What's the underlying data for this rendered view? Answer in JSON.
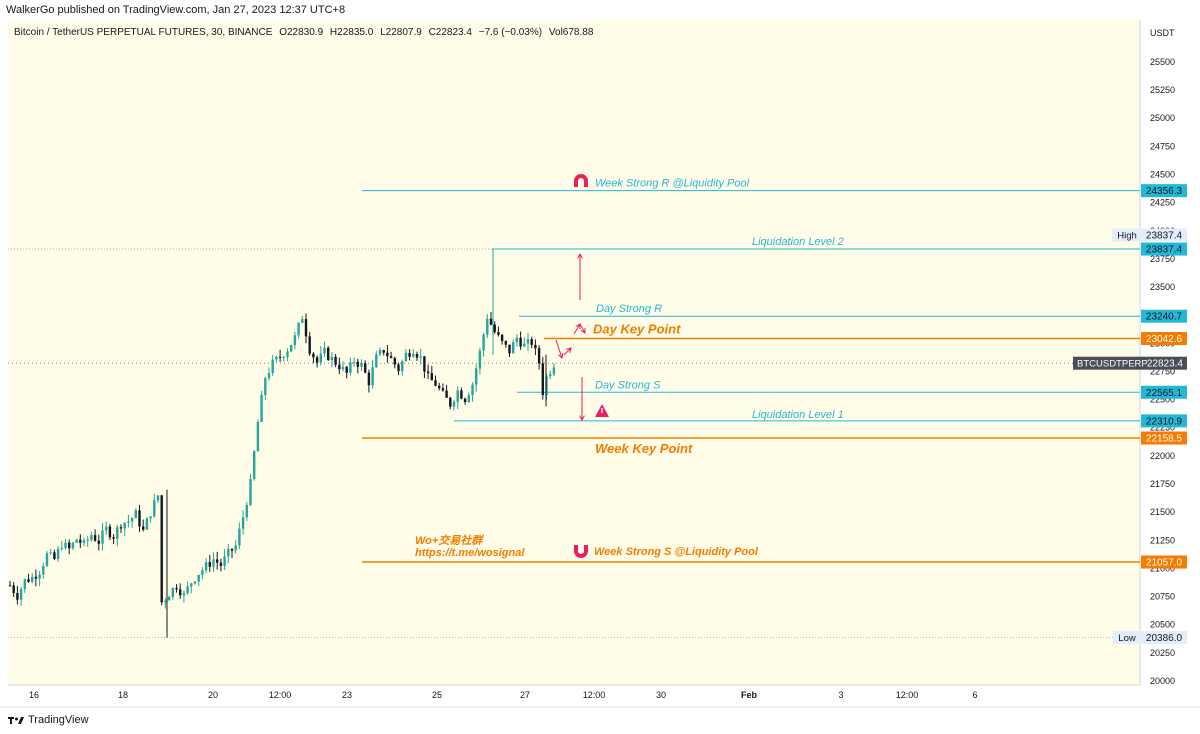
{
  "header": {
    "publisher": "WalkerGo published on TradingView.com, Jan 27, 2023 12:37 UTC+8"
  },
  "legend": {
    "title": "Bitcoin / TetherUS PERPETUAL FUTURES, 30, BINANCE",
    "open": "O22830.9",
    "high": "H22835.0",
    "low": "L22807.9",
    "close": "C22823.4",
    "change": "−7.6 (−0.03%)",
    "volume": "Vol678.88"
  },
  "footer": {
    "brand": "TradingView"
  },
  "colors": {
    "cyan": "#22b8d6",
    "orange": "#f57c00",
    "red": "#e91e63",
    "candle": "#26a69a",
    "candle_dark": "#131722",
    "plot_bg": "#fffde8"
  },
  "chart_data": {
    "type": "candlestick",
    "symbol": "BTCUSDTPERP",
    "currency": "USDT",
    "ylim": [
      19950,
      25700
    ],
    "y_ticks": [
      25500,
      25250,
      25000,
      24750,
      24500,
      24250,
      24000,
      23750,
      23500,
      23250,
      23000,
      22750,
      22500,
      22250,
      22000,
      21750,
      21500,
      21250,
      21000,
      20750,
      20500,
      20250,
      20000
    ],
    "x_ticks": [
      "16",
      "18",
      "20",
      "12:00",
      "23",
      "25",
      "27",
      "12:00",
      "30",
      "Feb",
      "3",
      "12:00",
      "6"
    ],
    "last_price": 22823.4,
    "high": 23837.4,
    "low": 20386.0,
    "high_label": "High",
    "low_label": "Low",
    "price_labels": [
      {
        "value": 24356.3,
        "text": "24356.3",
        "color": "cyan"
      },
      {
        "value": 23837.4,
        "text": "23837.4",
        "color": "cyan"
      },
      {
        "value": 23240.7,
        "text": "23240.7",
        "color": "cyan"
      },
      {
        "value": 23042.6,
        "text": "23042.6",
        "color": "orange"
      },
      {
        "value": 22565.1,
        "text": "22565.1",
        "color": "cyan"
      },
      {
        "value": 22310.9,
        "text": "22310.9",
        "color": "cyan"
      },
      {
        "value": 22158.5,
        "text": "22158.5",
        "color": "orange"
      },
      {
        "value": 21057.0,
        "text": "21057.0",
        "color": "orange"
      }
    ],
    "levels": [
      {
        "name": "Week Strong R @Liquidity Pool",
        "value": 24356.3,
        "color": "cyan",
        "icon": "magnet-up"
      },
      {
        "name": "Liquidation Level 2",
        "value": 23837.4,
        "color": "cyan"
      },
      {
        "name": "Day Strong R",
        "value": 23240.7,
        "color": "cyan"
      },
      {
        "name": "Day Key Point",
        "value": 23042.6,
        "color": "orange"
      },
      {
        "name": "Day Strong S",
        "value": 22565.1,
        "color": "cyan"
      },
      {
        "name": "Liquidation Level 1",
        "value": 22310.9,
        "color": "cyan"
      },
      {
        "name": "Week Key Point",
        "value": 22158.5,
        "color": "orange"
      },
      {
        "name": "Week Strong S @Liquidity Pool",
        "value": 21057.0,
        "color": "orange",
        "icon": "magnet-down"
      }
    ],
    "watermark": {
      "line1": "Wo+交易社群",
      "line2": "https://t.me/wosignal"
    },
    "price_path": [
      [
        0,
        20850
      ],
      [
        2,
        20760
      ],
      [
        4,
        20890
      ],
      [
        6,
        20920
      ],
      [
        8,
        20980
      ],
      [
        10,
        21120
      ],
      [
        12,
        21080
      ],
      [
        14,
        21220
      ],
      [
        16,
        21170
      ],
      [
        18,
        21260
      ],
      [
        20,
        21210
      ],
      [
        22,
        21300
      ],
      [
        24,
        21240
      ],
      [
        26,
        21350
      ],
      [
        28,
        21290
      ],
      [
        30,
        21400
      ],
      [
        32,
        21420
      ],
      [
        34,
        21480
      ],
      [
        36,
        21330
      ],
      [
        38,
        21500
      ],
      [
        40,
        21650
      ],
      [
        41,
        20700
      ],
      [
        43,
        20780
      ],
      [
        45,
        20850
      ],
      [
        47,
        20760
      ],
      [
        49,
        20880
      ],
      [
        51,
        20960
      ],
      [
        53,
        21020
      ],
      [
        55,
        21080
      ],
      [
        57,
        21030
      ],
      [
        59,
        21130
      ],
      [
        61,
        21200
      ],
      [
        63,
        21460
      ],
      [
        65,
        21750
      ],
      [
        67,
        22300
      ],
      [
        69,
        22700
      ],
      [
        71,
        22820
      ],
      [
        73,
        22880
      ],
      [
        75,
        22950
      ],
      [
        77,
        23050
      ],
      [
        79,
        23240
      ],
      [
        81,
        22950
      ],
      [
        83,
        22830
      ],
      [
        85,
        22920
      ],
      [
        87,
        22860
      ],
      [
        89,
        22800
      ],
      [
        91,
        22730
      ],
      [
        93,
        22850
      ],
      [
        95,
        22800
      ],
      [
        97,
        22660
      ],
      [
        99,
        22870
      ],
      [
        101,
        22940
      ],
      [
        103,
        22860
      ],
      [
        105,
        22770
      ],
      [
        107,
        22900
      ],
      [
        109,
        22950
      ],
      [
        111,
        22870
      ],
      [
        113,
        22690
      ],
      [
        115,
        22640
      ],
      [
        117,
        22540
      ],
      [
        119,
        22460
      ],
      [
        121,
        22580
      ],
      [
        123,
        22510
      ],
      [
        125,
        22640
      ],
      [
        127,
        22920
      ],
      [
        129,
        23240
      ],
      [
        131,
        23100
      ],
      [
        133,
        23000
      ],
      [
        135,
        22930
      ],
      [
        137,
        23050
      ],
      [
        139,
        22980
      ],
      [
        141,
        23010
      ],
      [
        143,
        22830
      ],
      [
        144,
        22570
      ],
      [
        145,
        22700
      ],
      [
        147,
        22823
      ]
    ]
  }
}
